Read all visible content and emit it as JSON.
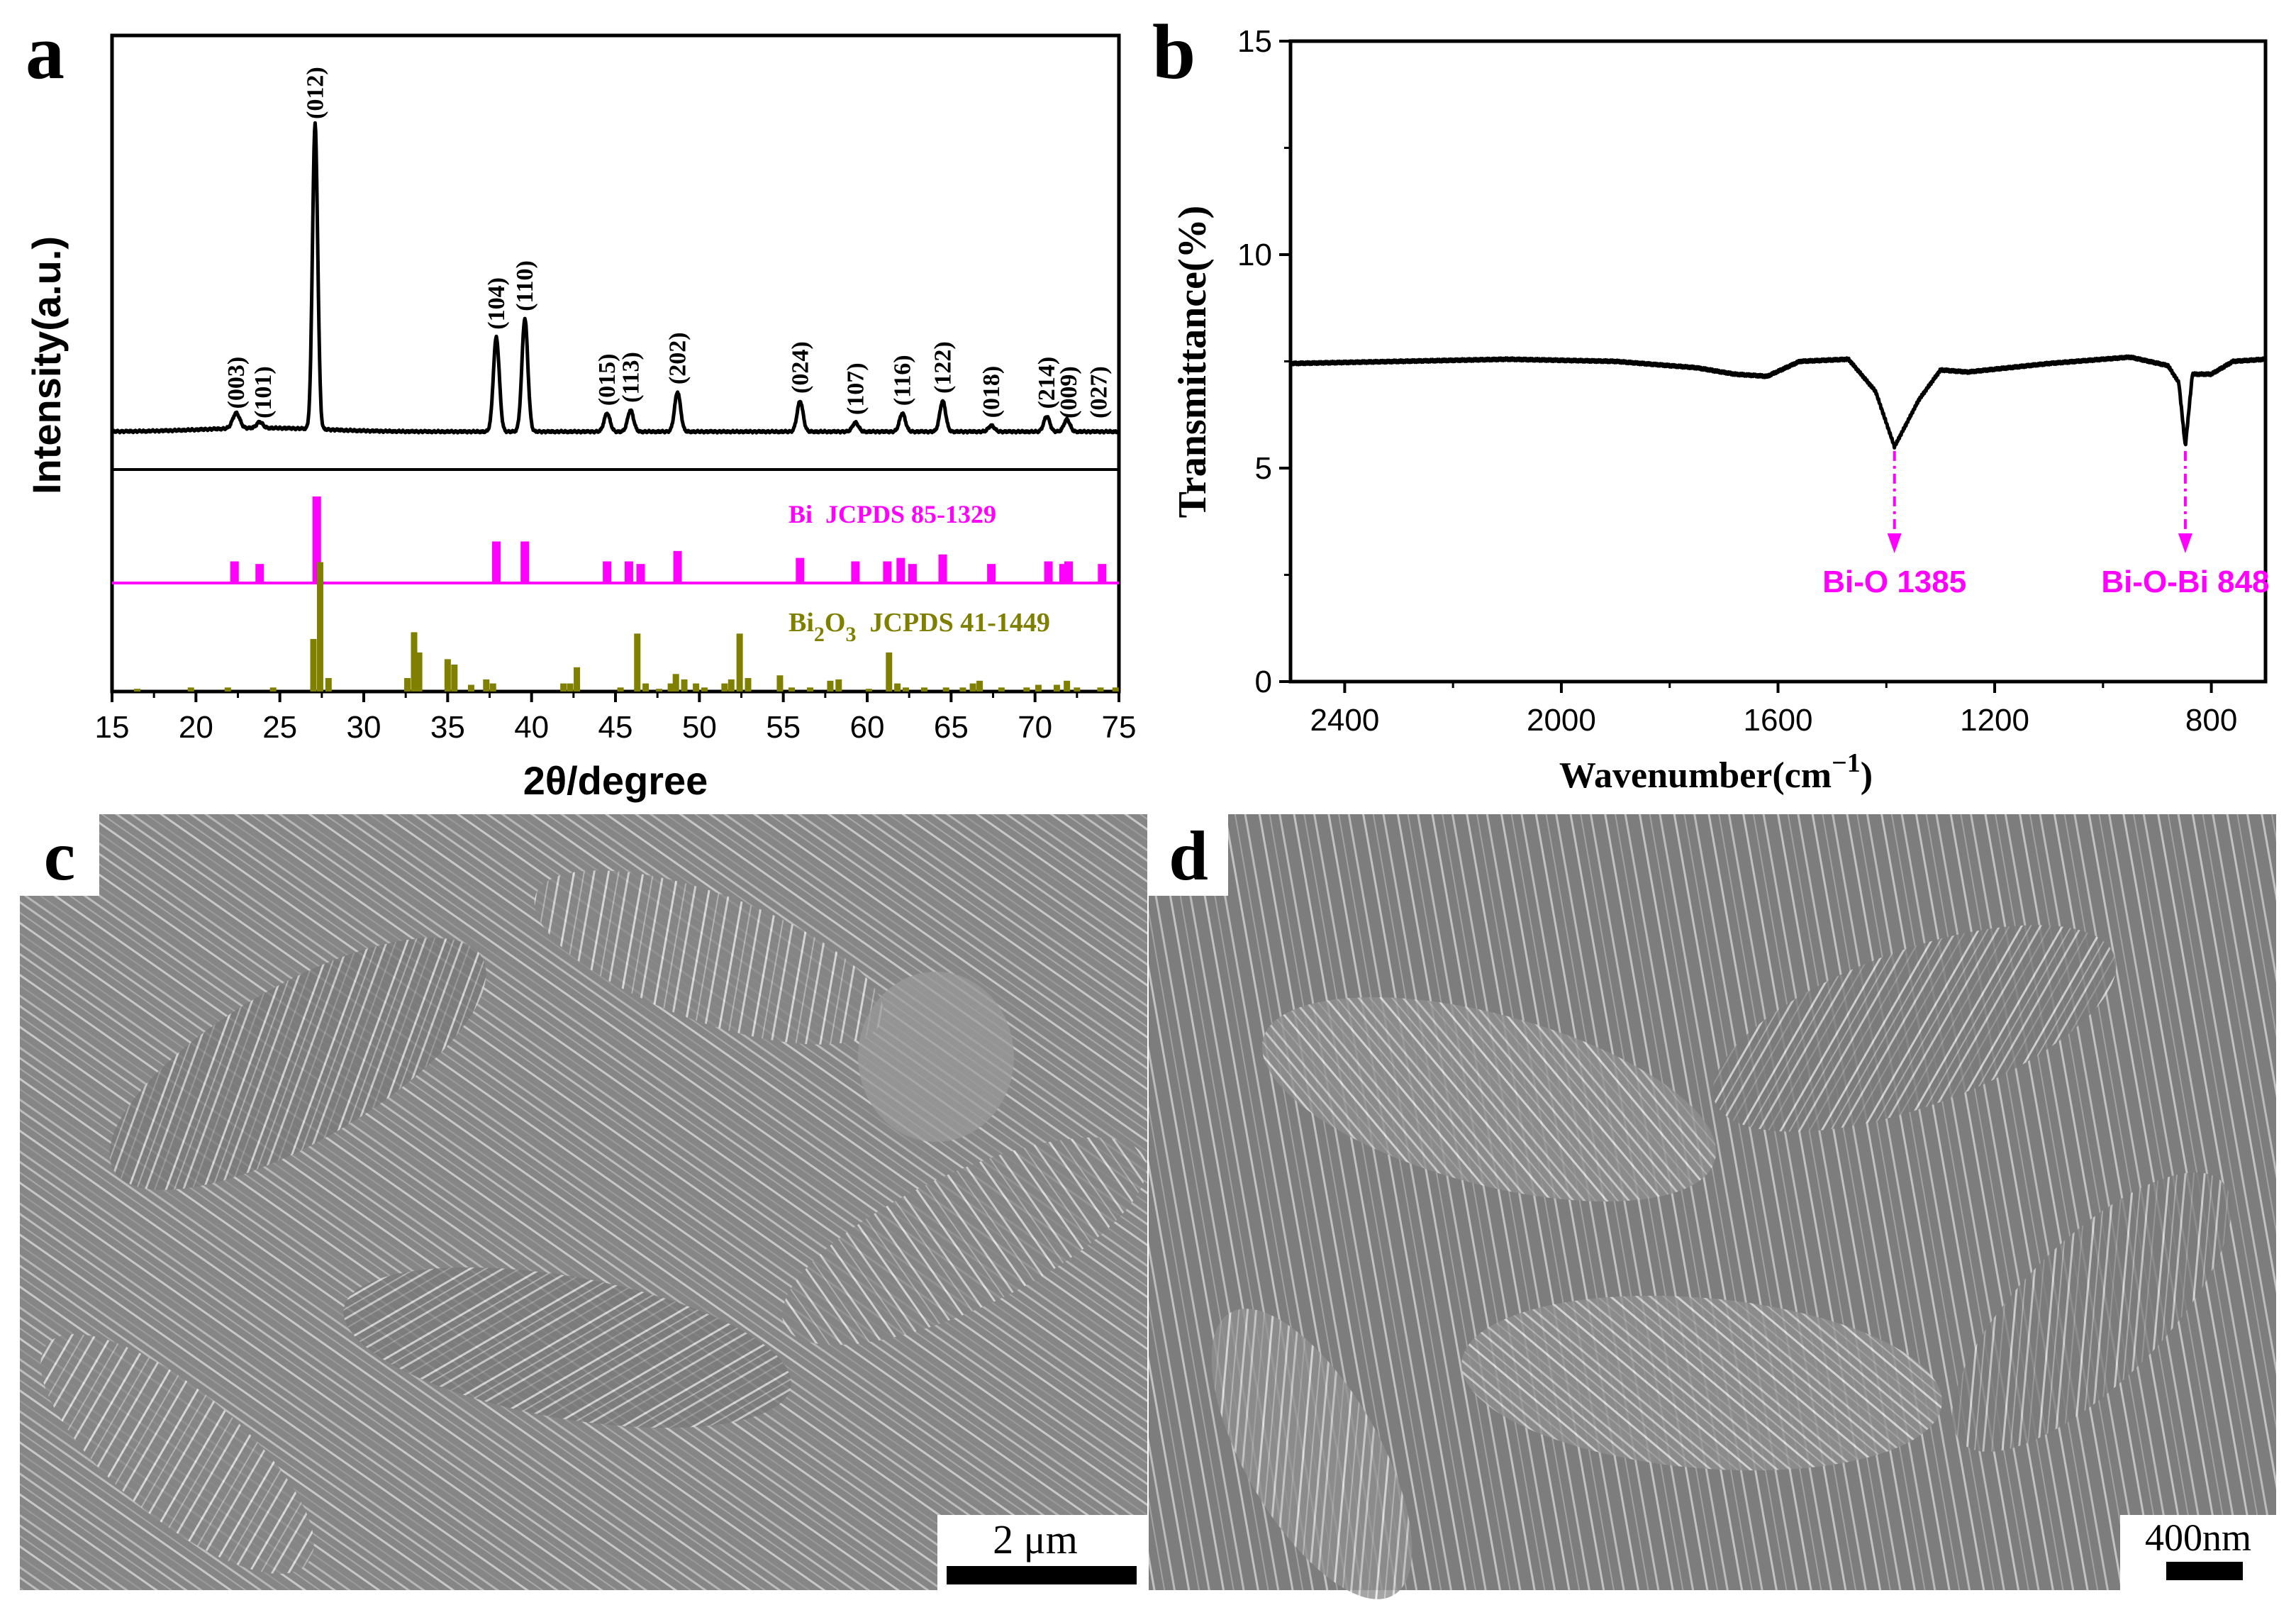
{
  "panels": {
    "a": {
      "letter": "a"
    },
    "b": {
      "letter": "b"
    },
    "c": {
      "letter": "c",
      "scale_bar": "2 μm"
    },
    "d": {
      "letter": "d",
      "scale_bar": "400nm"
    }
  },
  "colors": {
    "axis": "#000000",
    "bi_ref": "#ff00ff",
    "bi2o3_ref": "#808000",
    "annotation": "#ff00ff"
  },
  "chart_data": [
    {
      "id": "a",
      "type": "line",
      "xlabel": "2θ/degree",
      "ylabel": "Intensity(a.u.)",
      "xlim": [
        15,
        75
      ],
      "xticks": [
        15,
        20,
        25,
        30,
        35,
        40,
        45,
        50,
        55,
        60,
        65,
        70,
        75
      ],
      "series": [
        {
          "role": "measured",
          "peaks": [
            {
              "pos": 22.4,
              "h": 0.05,
              "w": 0.3
            },
            {
              "pos": 23.8,
              "h": 0.02,
              "w": 0.25
            },
            {
              "pos": 27.1,
              "h": 1.0,
              "w": 0.22
            },
            {
              "pos": 37.9,
              "h": 0.31,
              "w": 0.25
            },
            {
              "pos": 39.6,
              "h": 0.37,
              "w": 0.25
            },
            {
              "pos": 44.5,
              "h": 0.06,
              "w": 0.25
            },
            {
              "pos": 45.9,
              "h": 0.07,
              "w": 0.25
            },
            {
              "pos": 48.7,
              "h": 0.13,
              "w": 0.25
            },
            {
              "pos": 56.0,
              "h": 0.1,
              "w": 0.25
            },
            {
              "pos": 59.3,
              "h": 0.03,
              "w": 0.25
            },
            {
              "pos": 62.1,
              "h": 0.06,
              "w": 0.25
            },
            {
              "pos": 64.5,
              "h": 0.1,
              "w": 0.25
            },
            {
              "pos": 67.4,
              "h": 0.02,
              "w": 0.25
            },
            {
              "pos": 70.7,
              "h": 0.05,
              "w": 0.25
            },
            {
              "pos": 71.9,
              "h": 0.04,
              "w": 0.25
            }
          ]
        },
        {
          "name": "Bi JCPDS 85-1329",
          "role": "reference",
          "sticks": [
            [
              22.3,
              0.25
            ],
            [
              23.8,
              0.22
            ],
            [
              27.2,
              1.0
            ],
            [
              37.9,
              0.48
            ],
            [
              39.6,
              0.48
            ],
            [
              44.5,
              0.25
            ],
            [
              45.8,
              0.25
            ],
            [
              46.5,
              0.22
            ],
            [
              48.7,
              0.37
            ],
            [
              56.0,
              0.29
            ],
            [
              59.3,
              0.25
            ],
            [
              61.2,
              0.25
            ],
            [
              62.0,
              0.29
            ],
            [
              62.7,
              0.22
            ],
            [
              64.5,
              0.33
            ],
            [
              67.4,
              0.22
            ],
            [
              70.8,
              0.25
            ],
            [
              71.7,
              0.22
            ],
            [
              72.0,
              0.25
            ],
            [
              74.0,
              0.22
            ]
          ]
        },
        {
          "name": "Bi2O3 JCPDS 41-1449",
          "role": "reference",
          "sticks": [
            [
              16.5,
              0.02
            ],
            [
              19.7,
              0.03
            ],
            [
              21.9,
              0.03
            ],
            [
              24.6,
              0.03
            ],
            [
              27.0,
              0.39
            ],
            [
              27.4,
              0.96
            ],
            [
              27.9,
              0.1
            ],
            [
              32.6,
              0.1
            ],
            [
              33.0,
              0.44
            ],
            [
              33.3,
              0.29
            ],
            [
              35.0,
              0.24
            ],
            [
              35.4,
              0.2
            ],
            [
              36.4,
              0.05
            ],
            [
              37.3,
              0.09
            ],
            [
              37.7,
              0.06
            ],
            [
              41.9,
              0.06
            ],
            [
              42.3,
              0.06
            ],
            [
              42.7,
              0.18
            ],
            [
              45.3,
              0.03
            ],
            [
              46.3,
              0.43
            ],
            [
              46.8,
              0.06
            ],
            [
              47.6,
              0.02
            ],
            [
              48.3,
              0.06
            ],
            [
              48.6,
              0.13
            ],
            [
              49.1,
              0.09
            ],
            [
              49.8,
              0.06
            ],
            [
              50.3,
              0.03
            ],
            [
              51.5,
              0.06
            ],
            [
              51.9,
              0.09
            ],
            [
              52.4,
              0.43
            ],
            [
              52.9,
              0.1
            ],
            [
              54.8,
              0.12
            ],
            [
              55.5,
              0.03
            ],
            [
              56.6,
              0.03
            ],
            [
              57.8,
              0.08
            ],
            [
              58.3,
              0.09
            ],
            [
              60.1,
              0.02
            ],
            [
              61.3,
              0.29
            ],
            [
              61.8,
              0.06
            ],
            [
              62.3,
              0.03
            ],
            [
              63.4,
              0.03
            ],
            [
              64.7,
              0.03
            ],
            [
              65.7,
              0.03
            ],
            [
              66.3,
              0.06
            ],
            [
              66.7,
              0.08
            ],
            [
              68.0,
              0.03
            ],
            [
              69.5,
              0.03
            ],
            [
              70.2,
              0.05
            ],
            [
              71.3,
              0.05
            ],
            [
              71.9,
              0.08
            ],
            [
              72.5,
              0.03
            ],
            [
              73.9,
              0.03
            ],
            [
              74.8,
              0.03
            ]
          ]
        }
      ],
      "reference_labels": {
        "bi": "Bi  JCPDS 85-1329",
        "bi2o3_a": "Bi",
        "bi2o3_sub1": "2",
        "bi2o3_b": "O",
        "bi2o3_sub2": "3",
        "bi2o3_c": "  JCPDS 41-1449"
      },
      "annotations": [
        {
          "text": "(003)",
          "x": 22.4
        },
        {
          "text": "(101)",
          "x": 24.0
        },
        {
          "text": "(012)",
          "x": 27.1
        },
        {
          "text": "(104)",
          "x": 37.9
        },
        {
          "text": "(110)",
          "x": 39.6
        },
        {
          "text": "(015)",
          "x": 44.5
        },
        {
          "text": "(113)",
          "x": 45.9
        },
        {
          "text": "(202)",
          "x": 48.7
        },
        {
          "text": "(024)",
          "x": 56.0
        },
        {
          "text": "(107)",
          "x": 59.3
        },
        {
          "text": "(116)",
          "x": 62.1
        },
        {
          "text": "(122)",
          "x": 64.5
        },
        {
          "text": "(018)",
          "x": 67.4
        },
        {
          "text": "(214)",
          "x": 70.7
        },
        {
          "text": "(009)",
          "x": 72.0
        },
        {
          "text": "(027)",
          "x": 73.8
        }
      ]
    },
    {
      "id": "b",
      "type": "line",
      "xlabel_main": "Wavenumber(cm",
      "xlabel_sup": "−1",
      "xlabel_close": ")",
      "ylabel": "Transmittance(%)",
      "xlim": [
        2500,
        700
      ],
      "ylim": [
        0,
        15
      ],
      "xticks": [
        2400,
        2000,
        1600,
        1200,
        800
      ],
      "yticks": [
        0,
        5,
        10,
        15
      ],
      "series": [
        {
          "baseline": [
            [
              2500,
              7.45
            ],
            [
              2300,
              7.5
            ],
            [
              2100,
              7.55
            ],
            [
              1900,
              7.5
            ],
            [
              1750,
              7.35
            ],
            [
              1680,
              7.2
            ],
            [
              1620,
              7.15
            ],
            [
              1560,
              7.5
            ],
            [
              1470,
              7.55
            ],
            [
              1420,
              6.8
            ],
            [
              1385,
              5.5
            ],
            [
              1340,
              6.6
            ],
            [
              1300,
              7.3
            ],
            [
              1250,
              7.25
            ],
            [
              1100,
              7.45
            ],
            [
              1000,
              7.55
            ],
            [
              950,
              7.6
            ],
            [
              880,
              7.4
            ],
            [
              860,
              7.0
            ],
            [
              848,
              5.5
            ],
            [
              835,
              7.2
            ],
            [
              800,
              7.2
            ],
            [
              760,
              7.5
            ],
            [
              700,
              7.55
            ]
          ]
        }
      ],
      "annotations": [
        {
          "text": "Bi-O 1385",
          "x": 1385
        },
        {
          "text": "Bi-O-Bi 848",
          "x": 848
        }
      ]
    }
  ]
}
